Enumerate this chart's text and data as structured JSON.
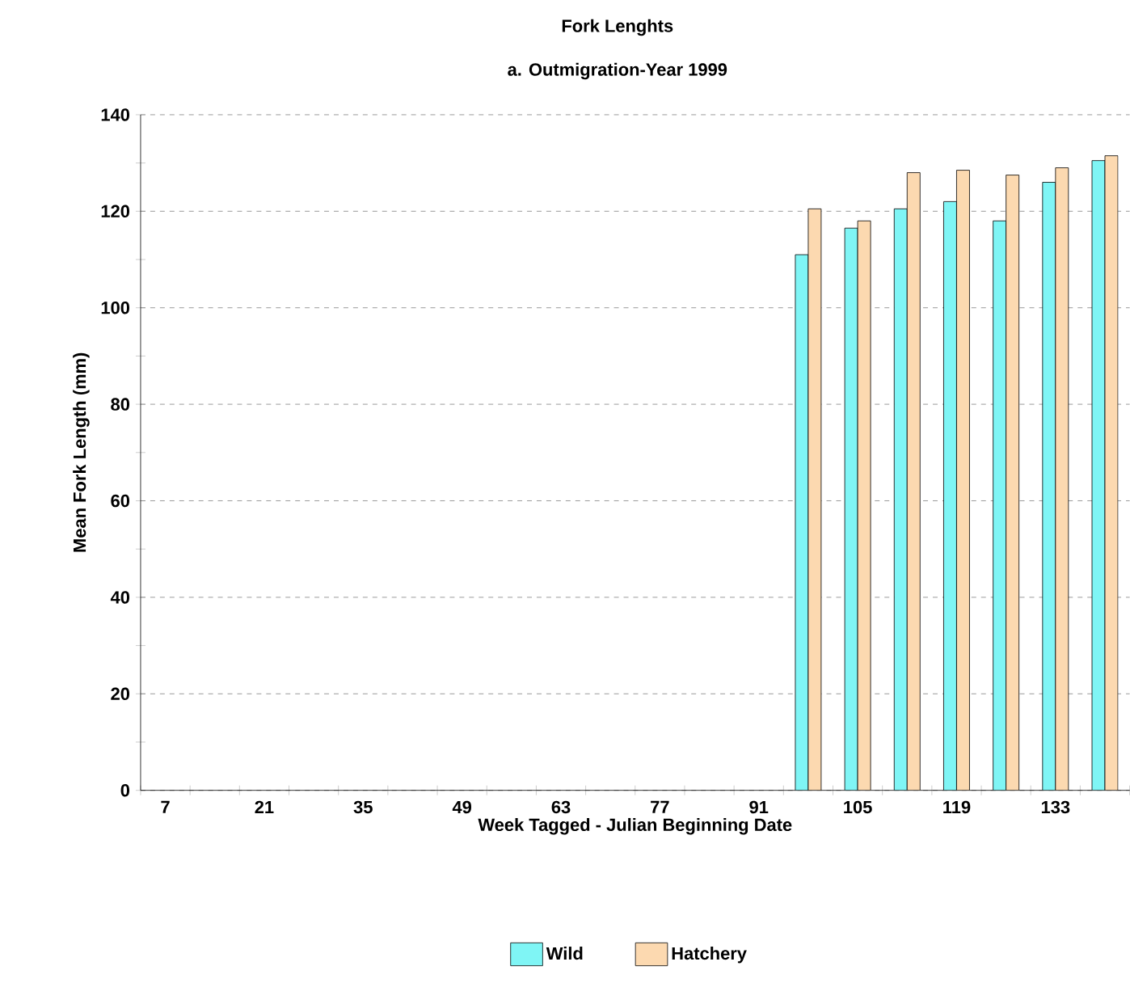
{
  "chart_data": {
    "type": "bar",
    "title": "Fork Lenghts",
    "subtitle": "a. Outmigration-Year 1999",
    "xlabel": "Week Tagged - Julian Beginning Date",
    "ylabel": "Mean Fork Length (mm)",
    "categories": [
      "7",
      null,
      "21",
      null,
      "35",
      null,
      "49",
      null,
      "63",
      null,
      "77",
      null,
      "91",
      null,
      "105",
      null,
      "119",
      null,
      "133",
      null
    ],
    "series": [
      {
        "name": "Wild",
        "color": "#7ff5f5",
        "values": [
          null,
          null,
          null,
          null,
          null,
          null,
          null,
          null,
          null,
          null,
          null,
          null,
          null,
          111,
          116.5,
          120.5,
          122,
          118,
          126,
          130.5
        ]
      },
      {
        "name": "Hatchery",
        "color": "#fcd9b0",
        "values": [
          null,
          null,
          null,
          null,
          null,
          null,
          null,
          null,
          null,
          null,
          null,
          null,
          null,
          120.5,
          118,
          128,
          128.5,
          127.5,
          129,
          131.5
        ]
      }
    ],
    "ylim": [
      0,
      140
    ],
    "yticks": [
      0,
      20,
      40,
      60,
      80,
      100,
      120,
      140
    ],
    "grid": "y",
    "legend": "bottom"
  }
}
